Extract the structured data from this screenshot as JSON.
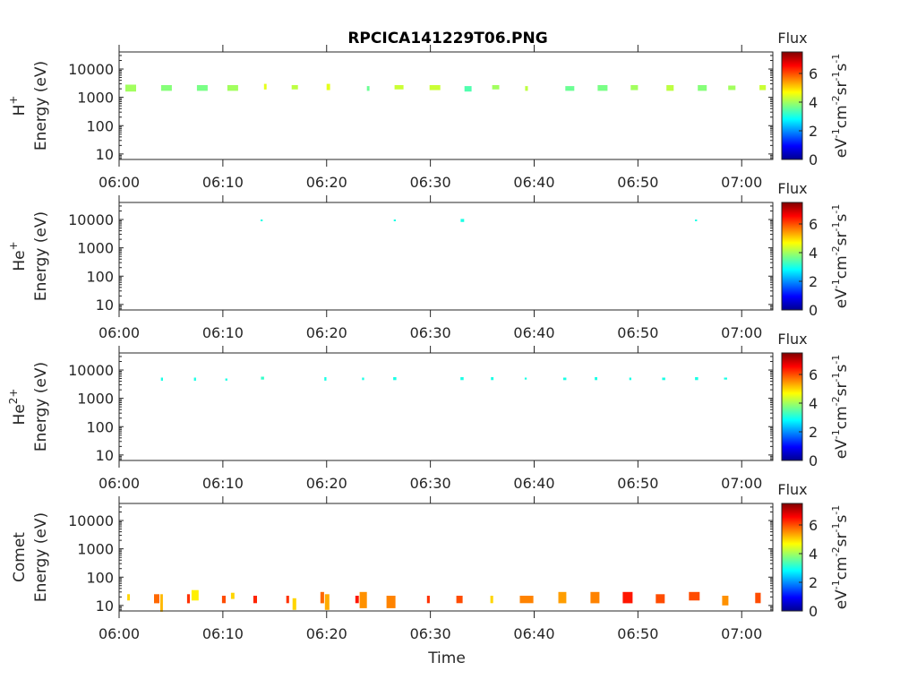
{
  "chart_data": {
    "type": "heatmap",
    "title": "RPCICA141229T06.PNG",
    "xlabel": "Time",
    "xlim": [
      "06:00:00",
      "07:03:00"
    ],
    "xticks": [
      "06:00",
      "06:10",
      "06:20",
      "06:30",
      "06:40",
      "06:50",
      "07:00"
    ],
    "ylim": [
      6.4,
      40000
    ],
    "yscale": "log",
    "yticks": [
      10,
      100,
      1000,
      10000
    ],
    "ytick_labels": [
      "10",
      "100",
      "1000",
      "10000"
    ],
    "clim": [
      0,
      7.5
    ],
    "colormap": "jet",
    "colorbar_title": "Flux",
    "colorbar_ticks": [
      "0",
      "2",
      "4",
      "6"
    ],
    "colorbar_label": [
      [
        "eV",
        "-1"
      ],
      [
        "cm",
        "-2"
      ],
      [
        "sr",
        "-1"
      ],
      [
        "s",
        "-1"
      ]
    ],
    "blob_fields": [
      "t_start",
      "t_end",
      "energy_min_eV",
      "energy_max_eV",
      "flux"
    ],
    "panels": [
      {
        "species": "H",
        "species_sup": "+",
        "ylabel": "Energy (eV)",
        "blobs": [
          [
            "06:00:36",
            "06:01:38",
            1600,
            2800,
            4.0
          ],
          [
            "06:04:03",
            "06:05:05",
            1700,
            2700,
            3.8
          ],
          [
            "06:07:30",
            "06:08:32",
            1700,
            2700,
            3.7
          ],
          [
            "06:10:26",
            "06:11:28",
            1700,
            2700,
            4.0
          ],
          [
            "06:13:58",
            "06:14:13",
            1900,
            3000,
            4.5
          ],
          [
            "06:16:38",
            "06:17:14",
            1900,
            2700,
            4.2
          ],
          [
            "06:20:00",
            "06:20:20",
            1800,
            3000,
            4.5
          ],
          [
            "06:23:53",
            "06:24:08",
            1700,
            2500,
            3.6
          ],
          [
            "06:26:33",
            "06:27:25",
            1900,
            2700,
            4.3
          ],
          [
            "06:29:55",
            "06:30:57",
            1800,
            2700,
            4.3
          ],
          [
            "06:33:17",
            "06:33:58",
            1600,
            2500,
            3.4
          ],
          [
            "06:35:57",
            "06:36:38",
            1900,
            2700,
            4.0
          ],
          [
            "06:39:08",
            "06:39:24",
            1700,
            2500,
            4.2
          ],
          [
            "06:43:00",
            "06:43:52",
            1700,
            2500,
            3.6
          ],
          [
            "06:46:07",
            "06:47:04",
            1700,
            2700,
            3.7
          ],
          [
            "06:49:18",
            "06:50:00",
            1800,
            2700,
            4.0
          ],
          [
            "06:52:45",
            "06:53:27",
            1700,
            2700,
            4.2
          ],
          [
            "06:55:46",
            "06:56:38",
            1700,
            2700,
            3.8
          ],
          [
            "06:58:42",
            "06:59:24",
            1800,
            2600,
            4.0
          ],
          [
            "07:01:43",
            "07:02:20",
            1800,
            2700,
            4.3
          ]
        ]
      },
      {
        "species": "He",
        "species_sup": "+",
        "ylabel": "Energy (eV)",
        "blobs": [
          [
            "06:13:38",
            "06:13:50",
            8800,
            10000,
            3.0
          ],
          [
            "06:26:28",
            "06:26:40",
            8800,
            10000,
            3.0
          ],
          [
            "06:32:55",
            "06:33:15",
            8200,
            10500,
            3.0
          ],
          [
            "06:55:30",
            "06:55:42",
            8800,
            10000,
            3.0
          ]
        ]
      },
      {
        "species": "He",
        "species_sup": "2+",
        "ylabel": "Energy (eV)",
        "blobs": [
          [
            "06:04:02",
            "06:04:14",
            4200,
            5400,
            3.0
          ],
          [
            "06:07:13",
            "06:07:25",
            4200,
            5400,
            3.0
          ],
          [
            "06:10:14",
            "06:10:26",
            4200,
            5000,
            3.0
          ],
          [
            "06:13:40",
            "06:13:58",
            4600,
            5800,
            3.2
          ],
          [
            "06:19:47",
            "06:19:59",
            4200,
            5600,
            3.0
          ],
          [
            "06:23:25",
            "06:23:37",
            4400,
            5400,
            3.0
          ],
          [
            "06:26:25",
            "06:26:43",
            4400,
            5600,
            3.0
          ],
          [
            "06:32:54",
            "06:33:12",
            4400,
            5600,
            3.0
          ],
          [
            "06:35:50",
            "06:36:05",
            4400,
            5600,
            3.0
          ],
          [
            "06:39:05",
            "06:39:17",
            4600,
            5400,
            3.0
          ],
          [
            "06:42:48",
            "06:43:06",
            4400,
            5400,
            3.0
          ],
          [
            "06:45:50",
            "06:46:05",
            4400,
            5600,
            3.0
          ],
          [
            "06:49:10",
            "06:49:22",
            4400,
            5400,
            3.0
          ],
          [
            "06:52:20",
            "06:52:38",
            4400,
            5400,
            3.0
          ],
          [
            "06:55:30",
            "06:55:48",
            4400,
            5600,
            3.0
          ],
          [
            "06:58:18",
            "06:58:36",
            4600,
            5400,
            3.0
          ]
        ]
      },
      {
        "species": "Comet",
        "species_sup": "",
        "ylabel": "Energy (eV)",
        "blobs": [
          [
            "06:00:47",
            "06:01:02",
            15,
            25,
            5.0
          ],
          [
            "06:03:22",
            "06:03:53",
            12,
            25,
            5.8
          ],
          [
            "06:03:58",
            "06:04:13",
            6,
            25,
            5.2
          ],
          [
            "06:06:33",
            "06:06:49",
            12,
            25,
            6.2
          ],
          [
            "06:06:59",
            "06:07:40",
            15,
            35,
            4.8
          ],
          [
            "06:09:55",
            "06:10:16",
            12,
            22,
            6.0
          ],
          [
            "06:10:47",
            "06:11:07",
            17,
            28,
            5.0
          ],
          [
            "06:12:56",
            "06:13:17",
            12,
            22,
            6.3
          ],
          [
            "06:16:07",
            "06:16:23",
            12,
            22,
            6.2
          ],
          [
            "06:16:43",
            "06:17:04",
            7,
            18,
            5.0
          ],
          [
            "06:19:24",
            "06:19:45",
            12,
            30,
            5.8
          ],
          [
            "06:19:50",
            "06:20:16",
            7,
            25,
            5.3
          ],
          [
            "06:22:46",
            "06:23:06",
            12,
            22,
            6.4
          ],
          [
            "06:23:11",
            "06:23:53",
            8,
            30,
            5.5
          ],
          [
            "06:25:46",
            "06:26:38",
            8,
            22,
            5.6
          ],
          [
            "06:29:40",
            "06:29:56",
            12,
            22,
            6.2
          ],
          [
            "06:32:30",
            "06:33:06",
            12,
            22,
            6.0
          ],
          [
            "06:35:47",
            "06:36:03",
            12,
            22,
            5.0
          ],
          [
            "06:38:37",
            "06:39:55",
            12,
            22,
            5.6
          ],
          [
            "06:42:20",
            "06:43:06",
            12,
            30,
            5.4
          ],
          [
            "06:45:26",
            "06:46:18",
            12,
            30,
            5.6
          ],
          [
            "06:48:32",
            "06:49:29",
            12,
            30,
            6.4
          ],
          [
            "06:51:43",
            "06:52:35",
            12,
            25,
            6.0
          ],
          [
            "06:54:55",
            "06:55:57",
            15,
            30,
            6.0
          ],
          [
            "06:58:07",
            "06:58:43",
            10,
            22,
            5.5
          ],
          [
            "07:01:18",
            "07:01:50",
            12,
            28,
            6.0
          ]
        ]
      }
    ]
  }
}
